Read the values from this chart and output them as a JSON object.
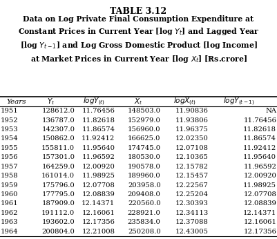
{
  "title1": "TABLE 3.12",
  "title2": "Data on Log Private Final Consumption Expenditure at\nConstant Prices in Current Year [log $Y_t$] and Lagged Year\n[log $Y_{t-1}$] and Log Gross Domestic Product [log Income]\nat Market Prices in Current Year [log $X_t$] [Rs.crore]",
  "rows": [
    [
      "1951",
      "128612.0",
      "11.76456",
      "148503.0",
      "11.90836",
      "NA"
    ],
    [
      "1952",
      "136787.0",
      "11.82618",
      "152979.0",
      "11.93806",
      "11.76456"
    ],
    [
      "1953",
      "142307.0",
      "11.86574",
      "156960.0",
      "11.96375",
      "11.82618"
    ],
    [
      "1954",
      "150862.0",
      "11.92412",
      "166625.0",
      "12.02350",
      "11.86574"
    ],
    [
      "1955",
      "155811.0",
      "11.95640",
      "174745.0",
      "12.07108",
      "11.92412"
    ],
    [
      "1956",
      "157301.0",
      "11.96592",
      "180530.0",
      "12.10365",
      "11.95640"
    ],
    [
      "1957",
      "164259.0",
      "12.00920",
      "190578.0",
      "12.15782",
      "11.96592"
    ],
    [
      "1958",
      "161014.0",
      "11.98925",
      "189960.0",
      "12.15457",
      "12.00920"
    ],
    [
      "1959",
      "175796.0",
      "12.07708",
      "203958.0",
      "12.22567",
      "11.98925"
    ],
    [
      "1960",
      "177795.0",
      "12.08839",
      "209408.0",
      "12.25204",
      "12.07708"
    ],
    [
      "1961",
      "187909.0",
      "12.14371",
      "220560.0",
      "12.30393",
      "12.08839"
    ],
    [
      "1962",
      "191112.0",
      "12.16061",
      "228921.0",
      "12.34113",
      "12.14371"
    ],
    [
      "1963",
      "193602.0",
      "12.17356",
      "235834.0",
      "12.37088",
      "12.16061"
    ],
    [
      "1964",
      "200804.0",
      "12.21008",
      "250208.0",
      "12.43005",
      "12.17356"
    ]
  ],
  "bg_color": "#ffffff",
  "text_color": "#000000",
  "title_fontsize1": 9,
  "title_fontsize2": 7.8,
  "header_fontsize": 7.5,
  "cell_fontsize": 7.2
}
